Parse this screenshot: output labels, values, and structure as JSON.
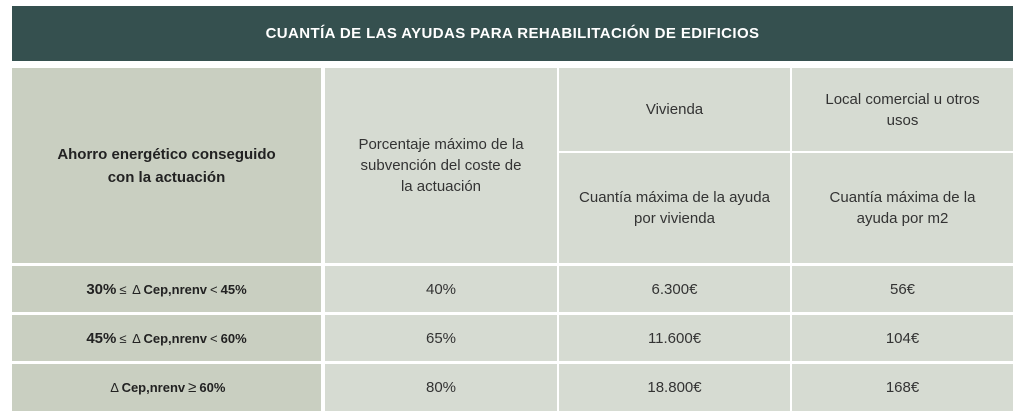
{
  "banner": {
    "title": "CUANTÍA DE LAS AYUDAS PARA REHABILITACIÓN DE EDIFICIOS"
  },
  "header": {
    "col1": "Ahorro energético conseguido con la actuación",
    "col2": "Porcentaje máximo de la subvención del coste de la actuación",
    "col3_top": "Vivienda",
    "col4_top": "Local comercial u otros usos",
    "col3_bottom": "Cuantía máxima de la ayuda por vivienda",
    "col4_bottom": "Cuantía máxima de la ayuda por m2"
  },
  "rows": [
    {
      "lower": "30%",
      "op1": "≤",
      "delta": "∆",
      "var": "Cep,nrenv",
      "op2": "<",
      "upper": "45%",
      "pct": "40%",
      "vivienda": "6.300€",
      "local": "56€"
    },
    {
      "lower": "45%",
      "op1": "≤",
      "delta": "∆",
      "var": "Cep,nrenv",
      "op2": "<",
      "upper": "60%",
      "pct": "65%",
      "vivienda": "11.600€",
      "local": "104€"
    },
    {
      "lower": "",
      "op1": "",
      "delta": "∆",
      "var": "Cep,nrenv",
      "op2": "≥",
      "upper": "60%",
      "pct": "80%",
      "vivienda": "18.800€",
      "local": "168€"
    }
  ]
}
